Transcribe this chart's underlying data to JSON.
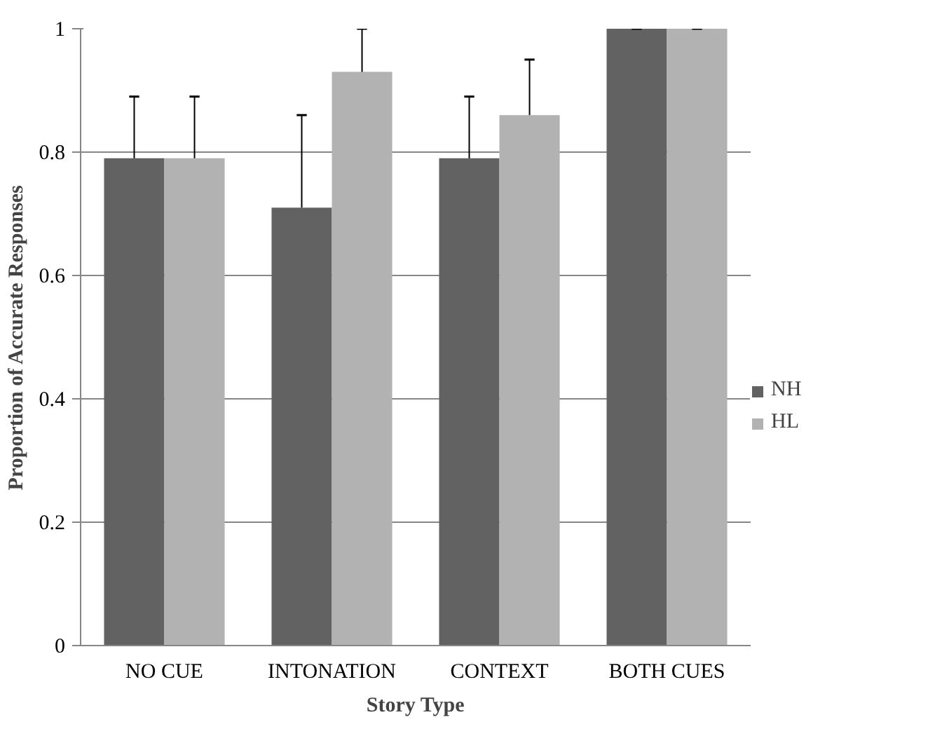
{
  "chart_data": {
    "type": "bar",
    "xlabel": "Story Type",
    "ylabel": "Proportion of Accurate Responses",
    "categories": [
      "NO CUE",
      "INTONATION",
      "CONTEXT",
      "BOTH CUES"
    ],
    "series": [
      {
        "name": "NH",
        "color": "#626262",
        "values": [
          0.79,
          0.71,
          0.79,
          1
        ],
        "errors": [
          [
            0.79,
            0.89
          ],
          [
            0.71,
            0.86
          ],
          [
            0.79,
            0.89
          ],
          [
            1,
            1
          ]
        ]
      },
      {
        "name": "HL",
        "color": "#b2b2b2",
        "values": [
          0.79,
          0.93,
          0.86,
          1
        ],
        "errors": [
          [
            0.79,
            0.89
          ],
          [
            0.93,
            1
          ],
          [
            0.86,
            0.95
          ],
          [
            1,
            1
          ]
        ]
      }
    ],
    "ylim": [
      0,
      1
    ],
    "yticks": [
      0,
      0.2,
      0.4,
      0.6,
      0.8,
      1
    ],
    "grid": "y",
    "legend": "right"
  }
}
